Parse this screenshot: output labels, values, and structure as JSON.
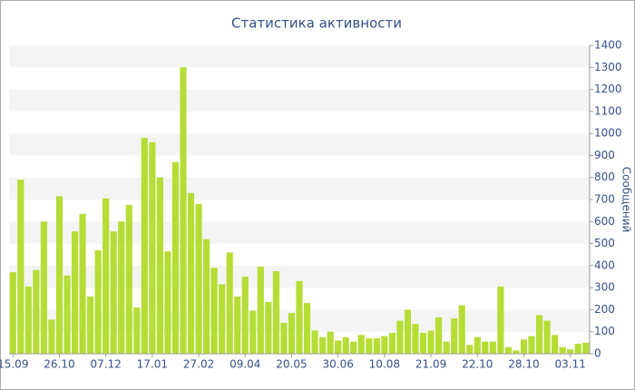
{
  "chart_data": {
    "type": "bar",
    "title": "Статистика активности",
    "y_axis_label": "Сообщений",
    "categories": [
      "15.09",
      null,
      null,
      null,
      null,
      null,
      "26.10",
      null,
      null,
      null,
      null,
      null,
      "07.12",
      null,
      null,
      null,
      null,
      null,
      "17.01",
      null,
      null,
      null,
      null,
      null,
      "27.02",
      null,
      null,
      null,
      null,
      null,
      "09.04",
      null,
      null,
      null,
      null,
      null,
      "20.05",
      null,
      null,
      null,
      null,
      null,
      "30.06",
      null,
      null,
      null,
      null,
      null,
      "10.08",
      null,
      null,
      null,
      null,
      null,
      "21.09",
      null,
      null,
      null,
      null,
      null,
      "22.10",
      null,
      null,
      null,
      null,
      null,
      "28.10",
      null,
      null,
      null,
      null,
      null,
      "03.11",
      null,
      null
    ],
    "values": [
      370,
      790,
      305,
      380,
      600,
      155,
      715,
      355,
      555,
      635,
      260,
      470,
      705,
      555,
      600,
      675,
      210,
      980,
      960,
      800,
      465,
      870,
      1300,
      730,
      680,
      520,
      390,
      315,
      460,
      260,
      350,
      195,
      395,
      235,
      375,
      140,
      185,
      330,
      230,
      105,
      75,
      100,
      60,
      75,
      55,
      85,
      70,
      70,
      80,
      95,
      150,
      200,
      135,
      95,
      105,
      165,
      55,
      160,
      220,
      40,
      75,
      55,
      55,
      305,
      30,
      15,
      65,
      80,
      175,
      150,
      85,
      30,
      20,
      45,
      50
    ],
    "color": "#b5dd35",
    "ylim": [
      0,
      1400
    ],
    "yticks": [
      0,
      100,
      200,
      300,
      400,
      500,
      600,
      700,
      800,
      900,
      1000,
      1100,
      1200,
      1300,
      1400
    ],
    "grid": true
  }
}
